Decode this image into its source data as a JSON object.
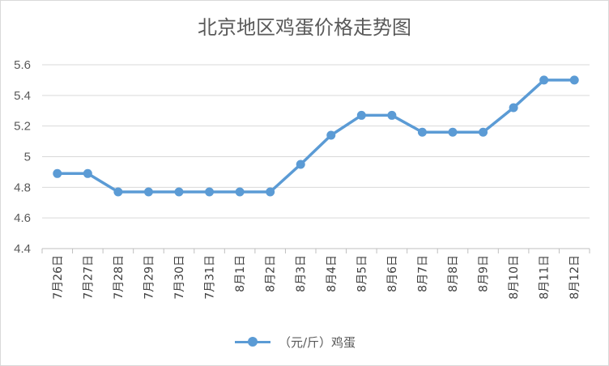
{
  "chart_data": {
    "type": "line",
    "title": "北京地区鸡蛋价格走势图",
    "categories": [
      "7月26日",
      "7月27日",
      "7月28日",
      "7月29日",
      "7月30日",
      "7月31日",
      "8月1日",
      "8月2日",
      "8月3日",
      "8月4日",
      "8月5日",
      "8月6日",
      "8月7日",
      "8月8日",
      "8月9日",
      "8月10日",
      "8月11日",
      "8月12日"
    ],
    "series": [
      {
        "name": "（元/斤）鸡蛋",
        "values": [
          4.89,
          4.89,
          4.77,
          4.77,
          4.77,
          4.77,
          4.77,
          4.77,
          4.95,
          5.14,
          5.27,
          5.27,
          5.16,
          5.16,
          5.16,
          5.32,
          5.5,
          5.5
        ]
      }
    ],
    "ylim": [
      4.4,
      5.6
    ],
    "yticks": [
      "4.4",
      "4.6",
      "4.8",
      "5",
      "5.2",
      "5.4",
      "5.6"
    ],
    "grid": true,
    "legend_position": "bottom",
    "color": "#5b9bd5"
  }
}
